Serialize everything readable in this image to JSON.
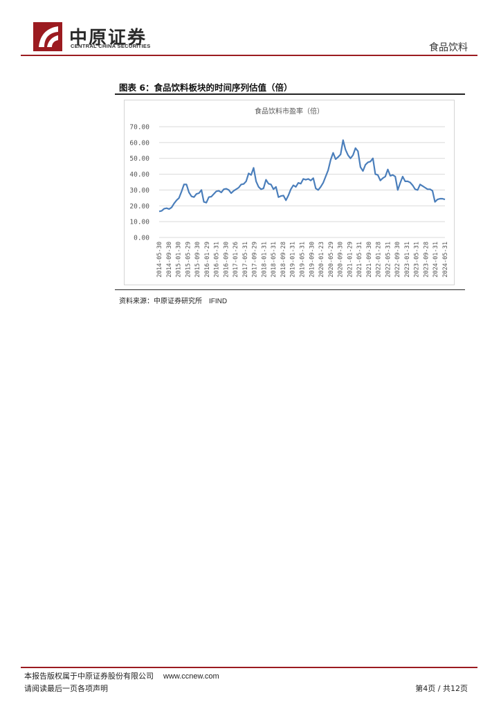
{
  "header": {
    "logo_cn": "中原证券",
    "logo_en": "CENTRAL CHINA SECURITIES",
    "section": "食品饮料",
    "brand_color": "#9b1b20"
  },
  "figure": {
    "title": "图表 6：食品饮料板块的时间序列估值（倍）",
    "source_label": "资料来源：中原证券研究所",
    "source_db": "IFIND"
  },
  "chart_data": {
    "type": "line",
    "title": "食品饮料市盈率（倍）",
    "line_color": "#4a7ebb",
    "ylim": [
      0,
      70
    ],
    "yticks": [
      "0.00",
      "10.00",
      "20.00",
      "30.00",
      "40.00",
      "50.00",
      "60.00",
      "70.00"
    ],
    "xtick_labels": [
      "2014-05-30",
      "2014-09-30",
      "2015-01-30",
      "2015-05-29",
      "2015-09-30",
      "2016-01-29",
      "2016-05-31",
      "2016-09-30",
      "2017-01-26",
      "2017-05-31",
      "2017-09-29",
      "2018-01-31",
      "2018-05-31",
      "2018-09-28",
      "2019-01-31",
      "2019-05-31",
      "2019-09-30",
      "2020-01-23",
      "2020-05-29",
      "2020-09-30",
      "2021-01-29",
      "2021-05-31",
      "2021-09-30",
      "2022-01-28",
      "2022-05-31",
      "2022-09-30",
      "2023-01-31",
      "2023-05-31",
      "2023-09-28",
      "2024-01-31",
      "2024-05-31"
    ],
    "grid": true,
    "series": [
      {
        "values": [
          16.5,
          16.8,
          18.2,
          18.5,
          18.0,
          19.0,
          21.5,
          23.5,
          25.0,
          29.0,
          33.5,
          33.5,
          28.5,
          26.0,
          25.5,
          27.5,
          28.0,
          30.0,
          22.5,
          22.0,
          25.5,
          25.8,
          27.5,
          29.2,
          29.5,
          28.5,
          30.5,
          30.8,
          30.0,
          28.0,
          29.5,
          30.5,
          31.5,
          33.5,
          33.8,
          35.5,
          40.5,
          39.5,
          44.0,
          35.5,
          32.0,
          30.5,
          31.0,
          36.5,
          34.0,
          33.5,
          30.5,
          32.0,
          25.5,
          26.2,
          26.5,
          23.5,
          26.5,
          30.5,
          33.0,
          32.0,
          34.5,
          34.0,
          37.0,
          36.5,
          37.0,
          36.0,
          37.5,
          31.0,
          30.0,
          32.0,
          34.5,
          38.5,
          42.5,
          49.0,
          53.5,
          49.5,
          50.8,
          52.5,
          61.5,
          55.5,
          52.0,
          50.0,
          52.0,
          56.5,
          54.5,
          44.5,
          42.0,
          46.0,
          47.5,
          48.0,
          50.0,
          40.0,
          39.5,
          36.0,
          37.5,
          38.5,
          43.0,
          39.0,
          39.5,
          38.5,
          30.0,
          34.5,
          38.5,
          35.5,
          35.5,
          34.8,
          33.0,
          30.5,
          30.0,
          33.5,
          32.5,
          31.5,
          30.5,
          30.5,
          29.5,
          22.5,
          24.0,
          24.5,
          24.5,
          24.0
        ]
      }
    ]
  },
  "footer": {
    "copyright": "本报告版权属于中原证券股份有限公司",
    "url": "www.ccnew.com",
    "disclaimer": "请阅读最后一页各项声明",
    "page_info": "第4页 / 共12页"
  }
}
